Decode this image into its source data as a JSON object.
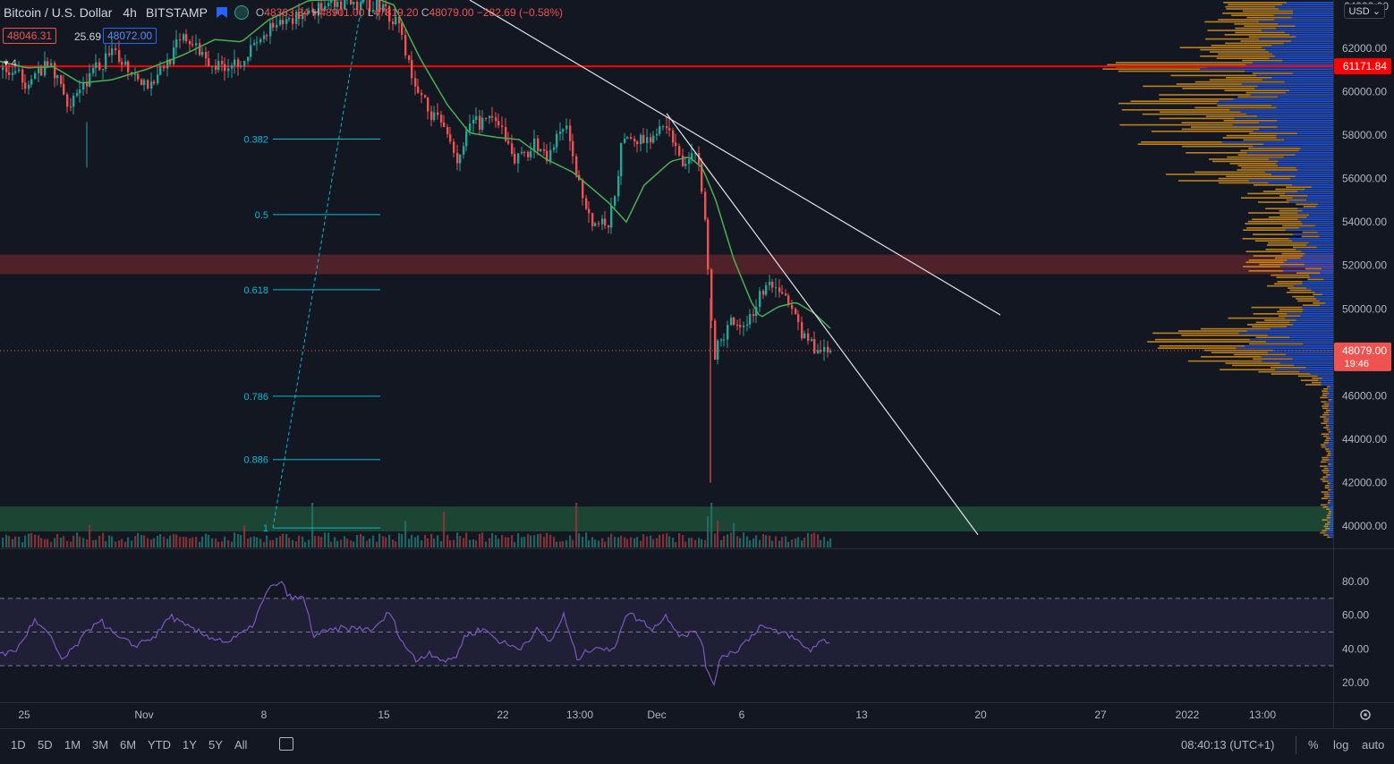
{
  "header": {
    "symbol": "Bitcoin / U.S. Dollar",
    "interval": "4h",
    "exchange": "BITSTAMP",
    "ohlc": {
      "o_label": "O",
      "o": "48363.34",
      "h_label": "H",
      "h": "48901.00",
      "l_label": "L",
      "l": "47819.20",
      "c_label": "C",
      "c": "48079.00",
      "change": "−282.69 (−0.58%)"
    }
  },
  "quote": {
    "bid": "48046.31",
    "spread": "25.69",
    "ask": "48072.00"
  },
  "indicator_count": "4",
  "currency_button": "USD",
  "colors": {
    "background": "#131722",
    "up": "#26a69a",
    "down": "#ef5350",
    "ma": "#4caf50",
    "fib": "#00bcd4",
    "resistance": "#ff0000",
    "rsi": "#7e57c2",
    "vp_up": "#f7a51a",
    "vp_down": "#2962ff"
  },
  "bottom_bar": {
    "timeframes": [
      "1D",
      "5D",
      "1M",
      "3M",
      "6M",
      "YTD",
      "1Y",
      "5Y",
      "All"
    ],
    "clock": "08:40:13 (UTC+1)",
    "percent_label": "%",
    "log_label": "log",
    "auto_label": "auto"
  },
  "chart_data": {
    "type": "candlestick",
    "price_axis": {
      "ticks": [
        "62000.00",
        "60000.00",
        "58000.00",
        "56000.00",
        "54000.00",
        "52000.00",
        "50000.00",
        "48000.00",
        "46000.00",
        "44000.00",
        "42000.00",
        "40000.00"
      ],
      "tick_values": [
        62000,
        60000,
        58000,
        56000,
        54000,
        52000,
        50000,
        48000,
        46000,
        44000,
        42000,
        40000
      ],
      "top_partial_label": "64000.00",
      "ylim": [
        39300,
        64100
      ]
    },
    "time_axis": {
      "ticks": [
        "25",
        "Nov",
        "8",
        "15",
        "22",
        "13:00",
        "Dec",
        "6",
        "13",
        "20",
        "27",
        "2022",
        "13:00"
      ]
    },
    "last_price": {
      "value": 48079,
      "label": "48079.00",
      "countdown": "19:46"
    },
    "resistance_line": {
      "value": 61171.84,
      "label": "61171.84"
    },
    "ma_anchors": [
      [
        0,
        61400
      ],
      [
        30,
        61100
      ],
      [
        60,
        61150
      ],
      [
        90,
        60400
      ],
      [
        125,
        60550
      ],
      [
        165,
        61050
      ],
      [
        205,
        61700
      ],
      [
        240,
        62400
      ],
      [
        270,
        62300
      ],
      [
        300,
        63300
      ],
      [
        345,
        64200
      ],
      [
        420,
        64300
      ],
      [
        440,
        64000
      ],
      [
        470,
        61500
      ],
      [
        500,
        59400
      ],
      [
        525,
        58100
      ],
      [
        555,
        57900
      ],
      [
        580,
        57800
      ],
      [
        610,
        56900
      ],
      [
        640,
        56300
      ],
      [
        660,
        55600
      ],
      [
        680,
        54900
      ],
      [
        700,
        54000
      ],
      [
        720,
        55700
      ],
      [
        750,
        56800
      ],
      [
        770,
        57000
      ],
      [
        785,
        56500
      ],
      [
        800,
        55000
      ],
      [
        820,
        52300
      ],
      [
        840,
        50300
      ],
      [
        850,
        49600
      ],
      [
        870,
        50100
      ],
      [
        890,
        50300
      ],
      [
        910,
        49800
      ],
      [
        928,
        49100
      ]
    ],
    "price_anchors": [
      [
        0,
        61000
      ],
      [
        30,
        60500
      ],
      [
        55,
        61200
      ],
      [
        75,
        59500
      ],
      [
        90,
        60300
      ],
      [
        125,
        61800
      ],
      [
        165,
        60300
      ],
      [
        205,
        62500
      ],
      [
        240,
        61200
      ],
      [
        270,
        61500
      ],
      [
        300,
        62800
      ],
      [
        345,
        63800
      ],
      [
        420,
        64100
      ],
      [
        445,
        63200
      ],
      [
        460,
        60500
      ],
      [
        480,
        59000
      ],
      [
        500,
        58200
      ],
      [
        510,
        56800
      ],
      [
        525,
        58500
      ],
      [
        545,
        58700
      ],
      [
        560,
        58200
      ],
      [
        575,
        56800
      ],
      [
        595,
        57600
      ],
      [
        610,
        56900
      ],
      [
        630,
        58600
      ],
      [
        645,
        55900
      ],
      [
        660,
        54000
      ],
      [
        680,
        53800
      ],
      [
        695,
        57700
      ],
      [
        710,
        57800
      ],
      [
        730,
        57900
      ],
      [
        745,
        58300
      ],
      [
        760,
        56800
      ],
      [
        780,
        57000
      ],
      [
        785,
        54900
      ],
      [
        790,
        52300
      ],
      [
        797,
        47800
      ],
      [
        805,
        48500
      ],
      [
        815,
        49500
      ],
      [
        830,
        49200
      ],
      [
        845,
        50300
      ],
      [
        855,
        51300
      ],
      [
        870,
        50900
      ],
      [
        885,
        49900
      ],
      [
        900,
        48400
      ],
      [
        915,
        48200
      ],
      [
        928,
        48079
      ]
    ],
    "volume_spikes": [
      {
        "x": 349,
        "v": 1.0
      },
      {
        "x": 643,
        "v": 1.0
      },
      {
        "x": 793,
        "v": 1.0
      },
      {
        "x": 790,
        "v": 0.7
      },
      {
        "x": 801,
        "v": 0.6
      },
      {
        "x": 496,
        "v": 0.8
      },
      {
        "x": 452,
        "v": 0.6
      },
      {
        "x": 98,
        "v": 0.5
      },
      {
        "x": 272,
        "v": 0.5
      },
      {
        "x": 720,
        "v": 0.6
      },
      {
        "x": 820,
        "v": 0.55
      }
    ],
    "fibonacci": {
      "levels": [
        {
          "label": "0.382",
          "price": 57820
        },
        {
          "label": "0.5",
          "price": 54340
        },
        {
          "label": "0.618",
          "price": 50880
        },
        {
          "label": "0.786",
          "price": 45980
        },
        {
          "label": "0.886",
          "price": 43060
        },
        {
          "label": "1",
          "price": 39910
        }
      ]
    },
    "zones": [
      {
        "name": "supply",
        "from": 51600,
        "to": 52500,
        "color": "#ef5350"
      },
      {
        "name": "demand",
        "from": 39750,
        "to": 40900,
        "color": "#26a69a"
      }
    ],
    "rsi": {
      "ticks": [
        "80.00",
        "60.00",
        "40.00",
        "20.00"
      ],
      "tick_values": [
        80,
        60,
        40,
        20
      ],
      "upper": 70,
      "mid": 50,
      "lower": 30,
      "ylim": [
        12,
        88
      ],
      "anchors": [
        [
          0,
          36
        ],
        [
          20,
          40
        ],
        [
          38,
          57
        ],
        [
          55,
          48
        ],
        [
          70,
          33
        ],
        [
          90,
          45
        ],
        [
          110,
          58
        ],
        [
          130,
          47
        ],
        [
          150,
          42
        ],
        [
          175,
          48
        ],
        [
          190,
          60
        ],
        [
          205,
          54
        ],
        [
          230,
          48
        ],
        [
          255,
          44
        ],
        [
          280,
          52
        ],
        [
          300,
          75
        ],
        [
          313,
          80
        ],
        [
          325,
          70
        ],
        [
          340,
          70
        ],
        [
          350,
          48
        ],
        [
          380,
          52
        ],
        [
          420,
          52
        ],
        [
          435,
          62
        ],
        [
          450,
          44
        ],
        [
          465,
          33
        ],
        [
          480,
          38
        ],
        [
          500,
          32
        ],
        [
          510,
          36
        ],
        [
          520,
          48
        ],
        [
          540,
          52
        ],
        [
          560,
          44
        ],
        [
          580,
          40
        ],
        [
          600,
          51
        ],
        [
          615,
          44
        ],
        [
          630,
          60
        ],
        [
          645,
          34
        ],
        [
          665,
          42
        ],
        [
          685,
          38
        ],
        [
          700,
          62
        ],
        [
          715,
          57
        ],
        [
          730,
          52
        ],
        [
          745,
          60
        ],
        [
          760,
          48
        ],
        [
          775,
          50
        ],
        [
          785,
          45
        ],
        [
          790,
          27
        ],
        [
          797,
          17
        ],
        [
          805,
          36
        ],
        [
          820,
          38
        ],
        [
          835,
          45
        ],
        [
          850,
          54
        ],
        [
          865,
          50
        ],
        [
          880,
          49
        ],
        [
          895,
          43
        ],
        [
          905,
          39
        ],
        [
          915,
          44
        ],
        [
          928,
          45
        ]
      ]
    }
  }
}
